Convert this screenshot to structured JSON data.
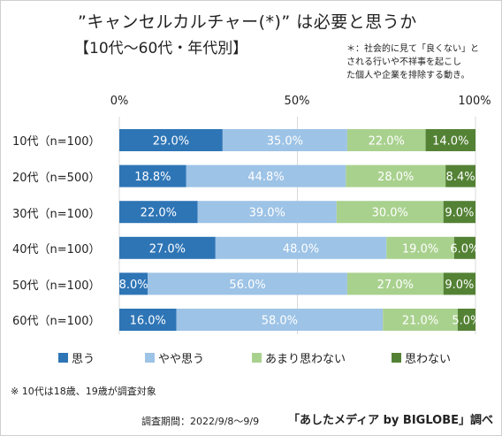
{
  "header": {
    "title": "”キャンセルカルチャー(*)” は必要と思うか",
    "subtitle": "【10代～60代・年代別】",
    "definition_lines": [
      "＊：社会的に見て「良くない」と",
      "される行いや不祥事を起こし",
      "た個人や企業を排除する動き。"
    ]
  },
  "footer": {
    "note": "※ 10代は18歳、19歳が調査対象",
    "period": "調査期間：2022/9/8～9/9",
    "source": "「あしたメディア by BIGLOBE」調べ"
  },
  "chart_data": {
    "type": "bar",
    "orientation": "horizontal",
    "stacked": true,
    "percent_stacked": true,
    "categories": [
      "10代（n=100）",
      "20代（n=500）",
      "30代（n=100）",
      "40代（n=100）",
      "50代（n=100）",
      "60代（n=100）"
    ],
    "series": [
      {
        "name": "思う",
        "color": "#2e75b6",
        "values": [
          29.0,
          18.8,
          22.0,
          27.0,
          8.0,
          16.0
        ],
        "labels": [
          "29.0%",
          "18.8%",
          "22.0%",
          "27.0%",
          "8.0%",
          "16.0%"
        ]
      },
      {
        "name": "やや思う",
        "color": "#9dc3e6",
        "values": [
          35.0,
          44.8,
          39.0,
          48.0,
          56.0,
          58.0
        ],
        "labels": [
          "35.0%",
          "44.8%",
          "39.0%",
          "48.0%",
          "56.0%",
          "58.0%"
        ]
      },
      {
        "name": "あまり思わない",
        "color": "#a9d18e",
        "values": [
          22.0,
          28.0,
          30.0,
          19.0,
          27.0,
          21.0
        ],
        "labels": [
          "22.0%",
          "28.0%",
          "30.0%",
          "19.0%",
          "27.0%",
          "21.0%"
        ]
      },
      {
        "name": "思わない",
        "color": "#548235",
        "values": [
          14.0,
          8.4,
          9.0,
          6.0,
          9.0,
          5.0
        ],
        "labels": [
          "14.0%",
          "8.4%",
          "9.0%",
          "6.0%",
          "9.0%",
          "5.0%"
        ]
      }
    ],
    "x_ticks": [
      "0%",
      "50%",
      "100%"
    ],
    "xlim": [
      0,
      100
    ],
    "grid": true,
    "legend_position": "bottom"
  }
}
